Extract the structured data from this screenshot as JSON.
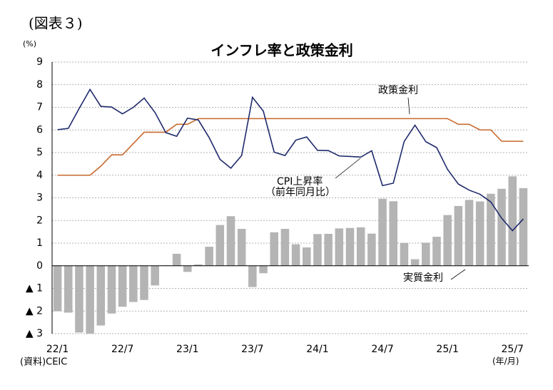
{
  "chart_data": {
    "type": "bar",
    "figure_label": "(図表３)",
    "title": "インフレ率と政策金利",
    "y_unit": "(%)",
    "x_unit": "(年/月)",
    "source": "(資料)CEIC",
    "annotations": [
      "（前年同月比）"
    ],
    "categories": [
      "22/1",
      null,
      null,
      null,
      null,
      null,
      "22/7",
      null,
      null,
      null,
      null,
      null,
      "23/1",
      null,
      null,
      null,
      null,
      null,
      "23/7",
      null,
      null,
      null,
      null,
      null,
      "24/1",
      null,
      null,
      null,
      null,
      null,
      "24/7",
      null,
      null,
      null,
      null,
      null,
      "25/1",
      null,
      null,
      null,
      null,
      null,
      "25/7",
      null
    ],
    "series": [
      {
        "name": "実質金利",
        "type": "bar",
        "color": "#b4b4b4",
        "values": [
          -2.01,
          -2.07,
          -2.95,
          -3.0,
          -2.64,
          -2.11,
          -1.81,
          -1.6,
          -1.51,
          -0.87,
          0.02,
          0.53,
          -0.27,
          0.06,
          0.84,
          1.8,
          2.19,
          1.63,
          -0.94,
          -0.33,
          1.48,
          1.63,
          0.95,
          0.81,
          1.4,
          1.41,
          1.65,
          1.67,
          1.7,
          1.42,
          2.96,
          2.85,
          1.01,
          0.29,
          1.02,
          1.28,
          2.24,
          2.64,
          2.91,
          2.84,
          3.18,
          3.4,
          3.95,
          3.43
        ]
      },
      {
        "name": "政策金利",
        "type": "line",
        "color": "#c8692c",
        "values": [
          4.0,
          4.0,
          4.0,
          4.0,
          4.4,
          4.9,
          4.9,
          5.4,
          5.9,
          5.9,
          5.9,
          6.25,
          6.25,
          6.5,
          6.5,
          6.5,
          6.5,
          6.5,
          6.5,
          6.5,
          6.5,
          6.5,
          6.5,
          6.5,
          6.5,
          6.5,
          6.5,
          6.5,
          6.5,
          6.5,
          6.5,
          6.5,
          6.5,
          6.5,
          6.5,
          6.5,
          6.5,
          6.25,
          6.25,
          6.0,
          6.0,
          5.5,
          5.5,
          5.5
        ]
      },
      {
        "name": "CPI上昇率",
        "type": "line",
        "color": "#1f2a6b",
        "values": [
          6.01,
          6.07,
          6.95,
          7.79,
          7.04,
          7.01,
          6.71,
          7.0,
          7.41,
          6.77,
          5.88,
          5.72,
          6.52,
          6.44,
          5.66,
          4.7,
          4.31,
          4.87,
          7.44,
          6.83,
          5.02,
          4.87,
          5.55,
          5.69,
          5.1,
          5.09,
          4.85,
          4.83,
          4.8,
          5.08,
          3.54,
          3.65,
          5.49,
          6.21,
          5.48,
          5.22,
          4.26,
          3.61,
          3.34,
          3.16,
          2.82,
          2.1,
          1.55,
          2.07
        ]
      }
    ],
    "ylim": [
      -3,
      9
    ],
    "yticks": [
      {
        "value": -3,
        "label": "▲ 3"
      },
      {
        "value": -2,
        "label": "▲ 2"
      },
      {
        "value": -1,
        "label": "▲ 1"
      },
      0,
      1,
      2,
      3,
      4,
      5,
      6,
      7,
      8,
      9
    ],
    "grid": true
  }
}
